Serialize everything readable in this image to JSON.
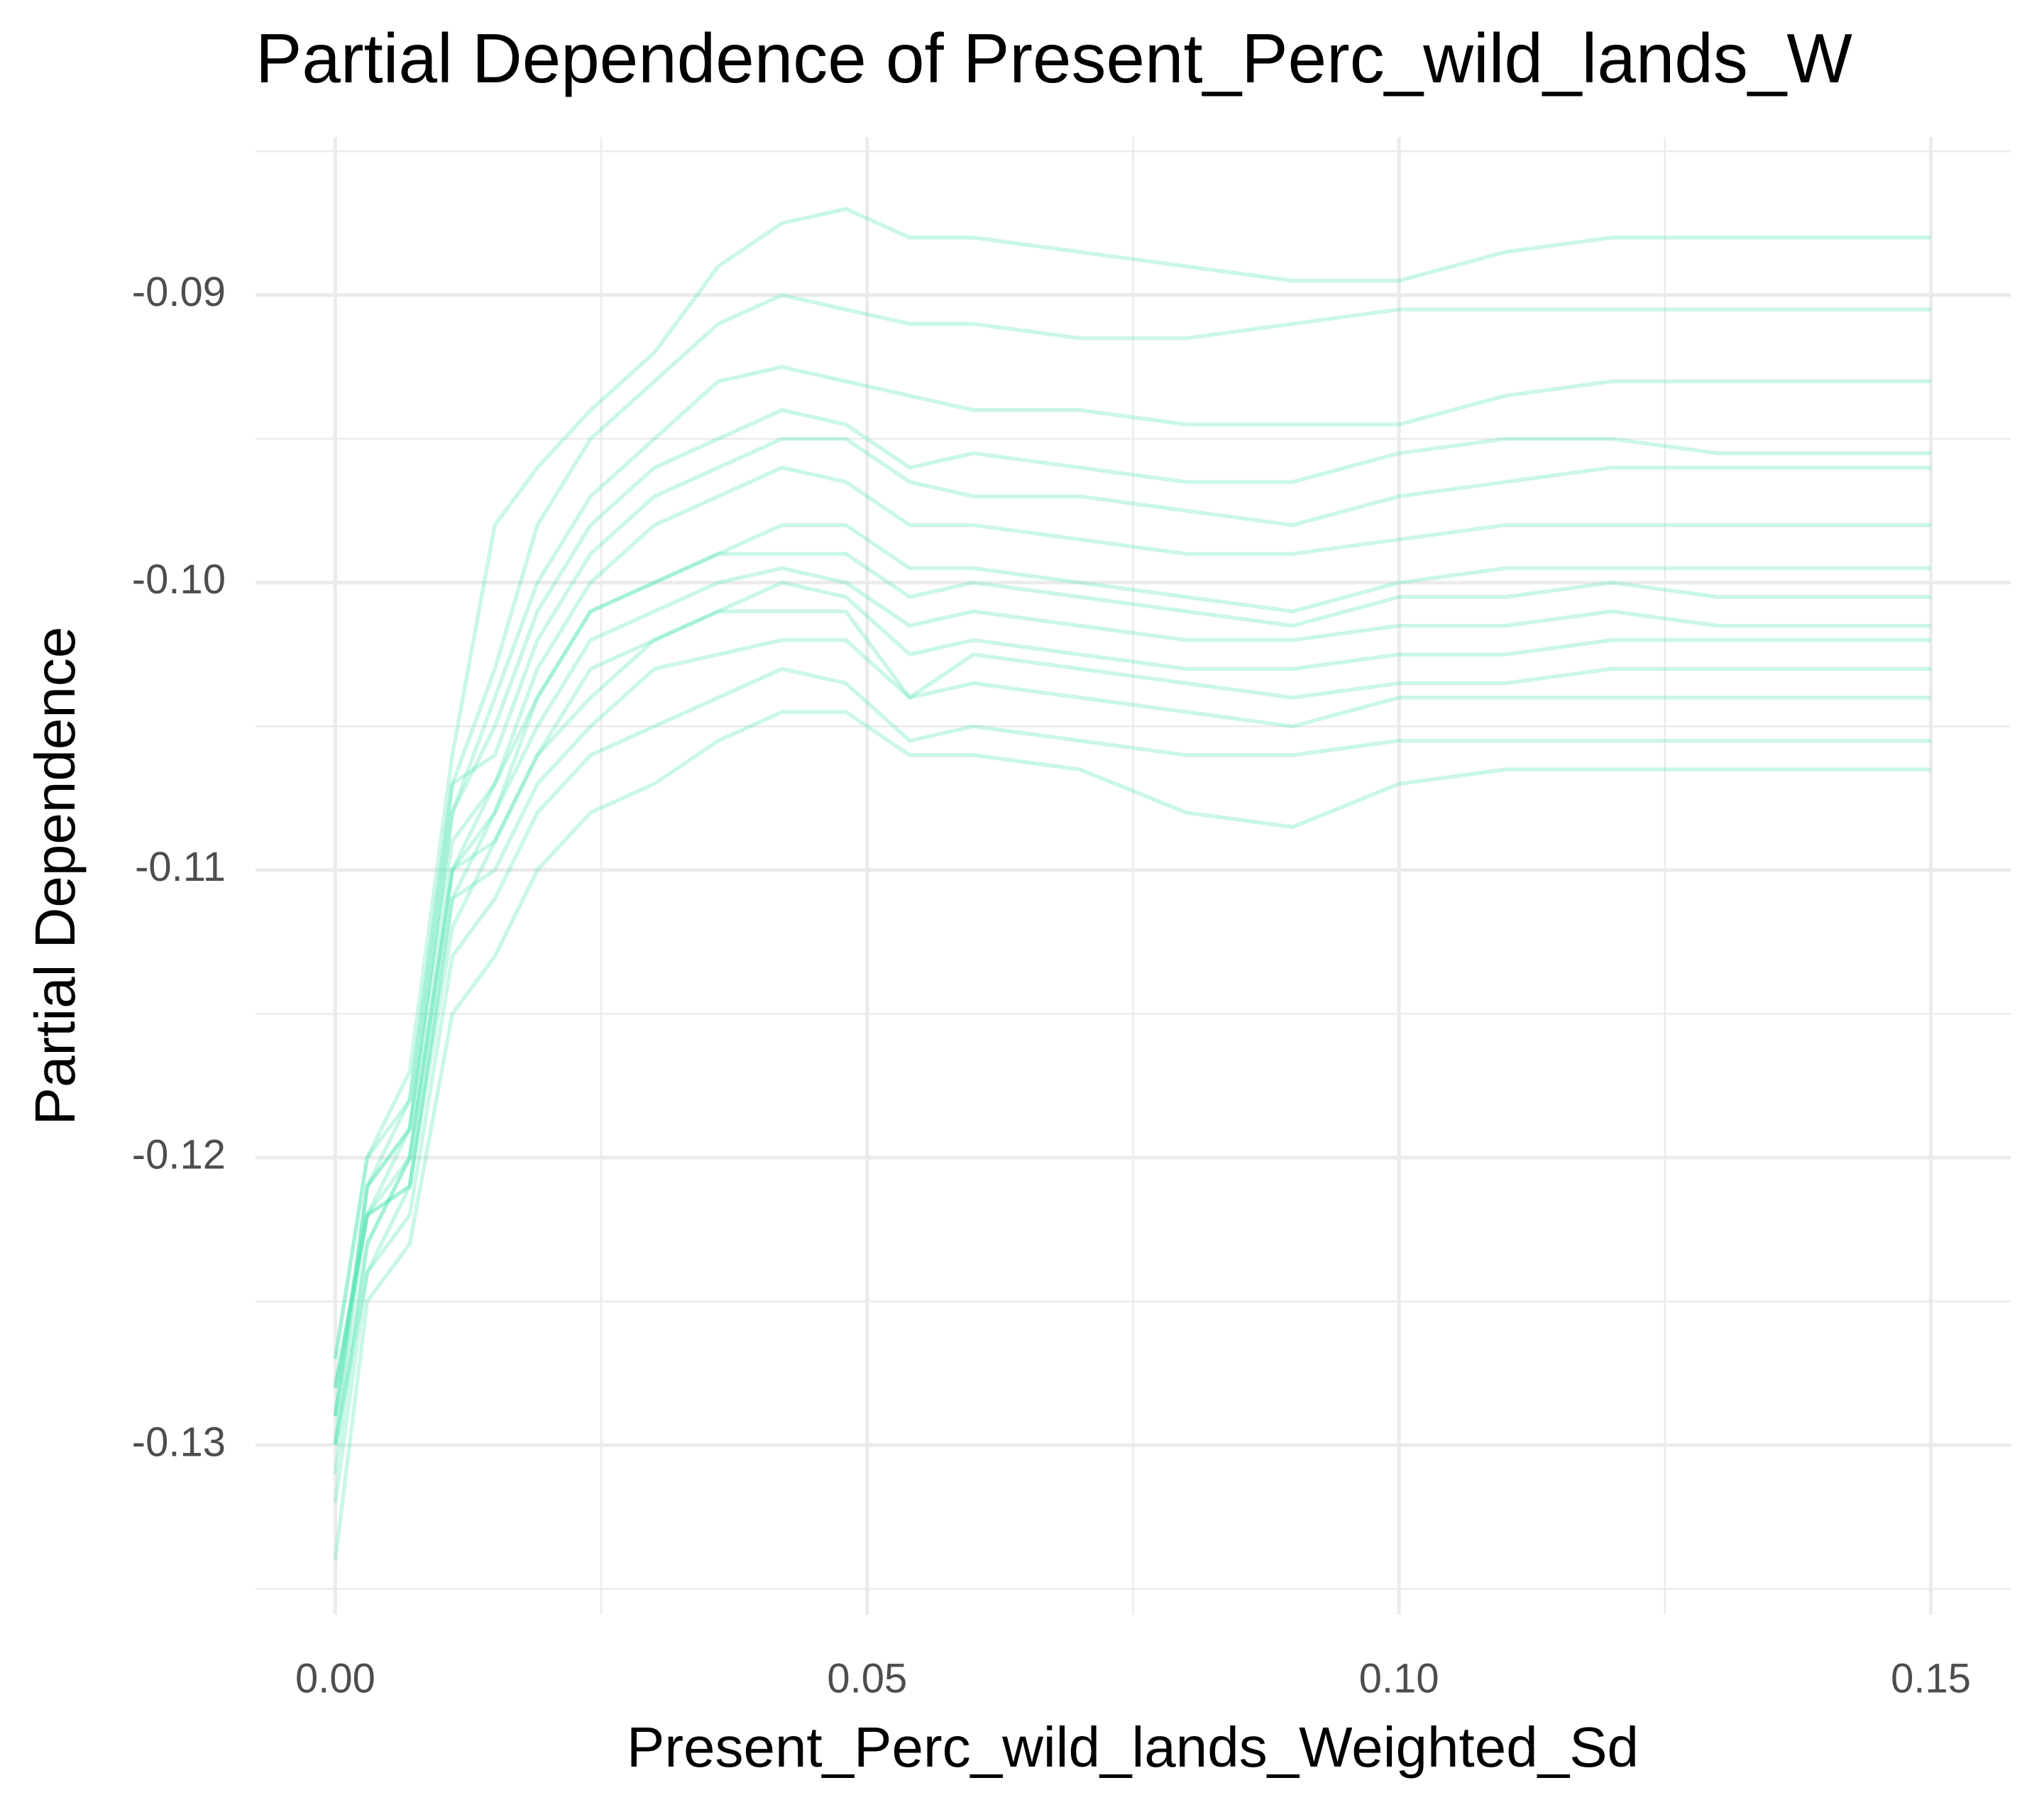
{
  "chart_data": {
    "type": "line",
    "title": "Partial Dependence of Present_Perc_wild_lands_W",
    "x_label": "Present_Perc_wild_lands_Weighted_Sd",
    "y_label": "Partial Dependence",
    "color": "#4fe3b4",
    "line_alpha": 0.3,
    "grid": true,
    "xlim": [
      -0.0075,
      0.1575
    ],
    "ylim": [
      -0.1359,
      -0.0845
    ],
    "xticks": [
      {
        "value": 0,
        "label": "0.00"
      },
      0.05,
      {
        "value": 0.1,
        "label": "0.10"
      },
      0.15
    ],
    "yticks": [
      -0.13,
      -0.12,
      -0.11,
      {
        "value": -0.1,
        "label": "-0.10"
      },
      -0.09
    ],
    "xminor": [
      0.025,
      0.075,
      0.125
    ],
    "yminor": [
      -0.135,
      -0.125,
      -0.115,
      -0.105,
      -0.095,
      -0.085
    ],
    "x": [
      0,
      0.003,
      0.007,
      0.011,
      0.015,
      0.019,
      0.024,
      0.03,
      0.036,
      0.042,
      0.048,
      0.054,
      0.06,
      0.07,
      0.08,
      0.09,
      0.1,
      0.11,
      0.12,
      0.13,
      0.15
    ],
    "series": [
      {
        "values": [
          -0.127,
          -0.12,
          -0.117,
          -0.106,
          -0.098,
          -0.096,
          -0.094,
          -0.092,
          -0.089,
          -0.0875,
          -0.087,
          -0.088,
          -0.088,
          -0.0885,
          -0.089,
          -0.0895,
          -0.0895,
          -0.0885,
          -0.088,
          -0.088,
          -0.088
        ]
      },
      {
        "values": [
          -0.129,
          -0.121,
          -0.118,
          -0.107,
          -0.103,
          -0.098,
          -0.095,
          -0.093,
          -0.091,
          -0.09,
          -0.0905,
          -0.091,
          -0.091,
          -0.0915,
          -0.0915,
          -0.091,
          -0.0905,
          -0.0905,
          -0.0905,
          -0.0905,
          -0.0905
        ]
      },
      {
        "values": [
          -0.128,
          -0.122,
          -0.119,
          -0.108,
          -0.104,
          -0.1,
          -0.097,
          -0.095,
          -0.093,
          -0.0925,
          -0.093,
          -0.0935,
          -0.094,
          -0.094,
          -0.0945,
          -0.0945,
          -0.0945,
          -0.0935,
          -0.093,
          -0.093,
          -0.093
        ]
      },
      {
        "values": [
          -0.13,
          -0.121,
          -0.119,
          -0.108,
          -0.105,
          -0.101,
          -0.098,
          -0.096,
          -0.095,
          -0.094,
          -0.0945,
          -0.096,
          -0.0955,
          -0.096,
          -0.0965,
          -0.0965,
          -0.0955,
          -0.095,
          -0.095,
          -0.0955,
          -0.0955
        ]
      },
      {
        "values": [
          -0.127,
          -0.12,
          -0.118,
          -0.107,
          -0.106,
          -0.102,
          -0.099,
          -0.097,
          -0.096,
          -0.095,
          -0.095,
          -0.0965,
          -0.097,
          -0.097,
          -0.0975,
          -0.098,
          -0.097,
          -0.0965,
          -0.096,
          -0.096,
          -0.096
        ]
      },
      {
        "values": [
          -0.128,
          -0.122,
          -0.12,
          -0.11,
          -0.107,
          -0.103,
          -0.1,
          -0.098,
          -0.097,
          -0.096,
          -0.0965,
          -0.098,
          -0.098,
          -0.0985,
          -0.099,
          -0.099,
          -0.0985,
          -0.098,
          -0.098,
          -0.098,
          -0.098
        ]
      },
      {
        "values": [
          -0.129,
          -0.121,
          -0.119,
          -0.109,
          -0.107,
          -0.104,
          -0.101,
          -0.1,
          -0.099,
          -0.098,
          -0.098,
          -0.0995,
          -0.0995,
          -0.1,
          -0.1005,
          -0.101,
          -0.1,
          -0.0995,
          -0.0995,
          -0.0995,
          -0.0995
        ]
      },
      {
        "values": [
          -0.13,
          -0.123,
          -0.12,
          -0.11,
          -0.108,
          -0.104,
          -0.101,
          -0.1,
          -0.099,
          -0.099,
          -0.099,
          -0.1005,
          -0.1,
          -0.1005,
          -0.101,
          -0.1015,
          -0.1005,
          -0.1005,
          -0.1,
          -0.1005,
          -0.1005
        ]
      },
      {
        "values": [
          -0.128,
          -0.122,
          -0.121,
          -0.111,
          -0.108,
          -0.105,
          -0.102,
          -0.101,
          -0.1,
          -0.0995,
          -0.1,
          -0.1015,
          -0.101,
          -0.1015,
          -0.102,
          -0.102,
          -0.1015,
          -0.1015,
          -0.101,
          -0.1015,
          -0.1015
        ]
      },
      {
        "values": [
          -0.131,
          -0.123,
          -0.12,
          -0.11,
          -0.109,
          -0.106,
          -0.103,
          -0.102,
          -0.101,
          -0.1,
          -0.1005,
          -0.1025,
          -0.102,
          -0.1025,
          -0.103,
          -0.103,
          -0.1025,
          -0.1025,
          -0.102,
          -0.102,
          -0.102
        ]
      },
      {
        "values": [
          -0.129,
          -0.122,
          -0.121,
          -0.112,
          -0.109,
          -0.106,
          -0.104,
          -0.102,
          -0.101,
          -0.101,
          -0.101,
          -0.104,
          -0.1025,
          -0.103,
          -0.1035,
          -0.104,
          -0.1035,
          -0.1035,
          -0.103,
          -0.103,
          -0.103
        ]
      },
      {
        "values": [
          -0.132,
          -0.124,
          -0.121,
          -0.111,
          -0.11,
          -0.107,
          -0.105,
          -0.103,
          -0.1025,
          -0.102,
          -0.102,
          -0.104,
          -0.1035,
          -0.104,
          -0.1045,
          -0.105,
          -0.104,
          -0.104,
          -0.104,
          -0.104,
          -0.104
        ]
      },
      {
        "values": [
          -0.13,
          -0.124,
          -0.122,
          -0.113,
          -0.111,
          -0.108,
          -0.106,
          -0.105,
          -0.104,
          -0.103,
          -0.1035,
          -0.1055,
          -0.105,
          -0.1055,
          -0.106,
          -0.106,
          -0.1055,
          -0.1055,
          -0.1055,
          -0.1055,
          -0.1055
        ]
      },
      {
        "values": [
          -0.134,
          -0.125,
          -0.123,
          -0.115,
          -0.113,
          -0.11,
          -0.108,
          -0.107,
          -0.1055,
          -0.1045,
          -0.1045,
          -0.106,
          -0.106,
          -0.1065,
          -0.108,
          -0.1085,
          -0.107,
          -0.1065,
          -0.1065,
          -0.1065,
          -0.1065
        ]
      }
    ]
  }
}
